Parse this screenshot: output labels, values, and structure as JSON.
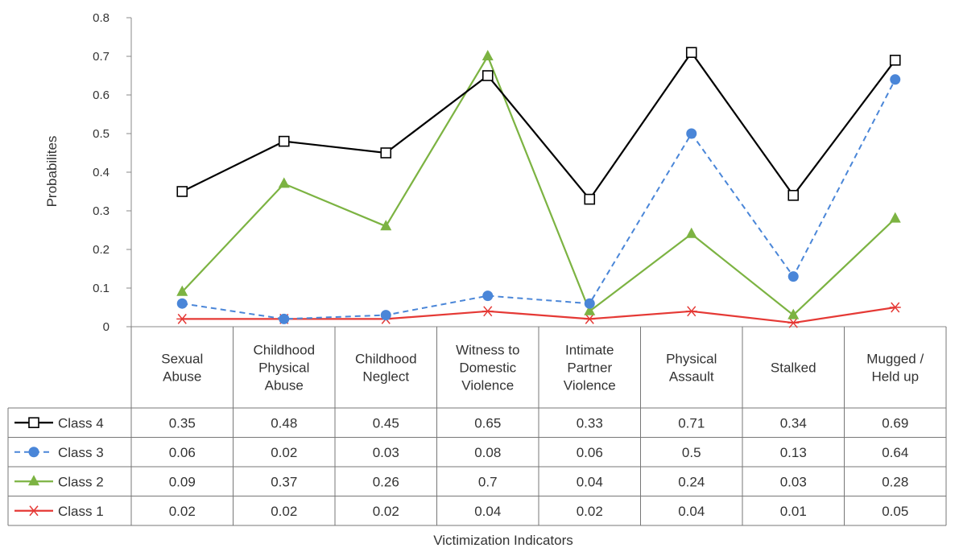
{
  "chart_data": {
    "type": "line",
    "xlabel": "Victimization Indicators",
    "ylabel": "Probabilites",
    "ylim": [
      0,
      0.8
    ],
    "yticks": [
      "0",
      "0.1",
      "0.2",
      "0.3",
      "0.4",
      "0.5",
      "0.6",
      "0.7",
      "0.8"
    ],
    "grid": false,
    "legend": "data-table",
    "categories": [
      [
        "Sexual",
        "Abuse"
      ],
      [
        "Childhood",
        "Physical",
        "Abuse"
      ],
      [
        "Childhood",
        "Neglect"
      ],
      [
        "Witness to",
        "Domestic",
        "Violence"
      ],
      [
        "Intimate",
        "Partner",
        "Violence"
      ],
      [
        "Physical",
        "Assault"
      ],
      [
        "Stalked"
      ],
      [
        "Mugged /",
        "Held up"
      ]
    ],
    "series": [
      {
        "name": "Class 4",
        "color": "#000000",
        "dash": "solid",
        "marker": "square-open",
        "values": [
          0.35,
          0.48,
          0.45,
          0.65,
          0.33,
          0.71,
          0.34,
          0.69
        ],
        "labels": [
          "0.35",
          "0.48",
          "0.45",
          "0.65",
          "0.33",
          "0.71",
          "0.34",
          "0.69"
        ]
      },
      {
        "name": "Class 3",
        "color": "#4a86d8",
        "dash": "dashed",
        "marker": "circle",
        "values": [
          0.06,
          0.02,
          0.03,
          0.08,
          0.06,
          0.5,
          0.13,
          0.64
        ],
        "labels": [
          "0.06",
          "0.02",
          "0.03",
          "0.08",
          "0.06",
          "0.5",
          "0.13",
          "0.64"
        ]
      },
      {
        "name": "Class 2",
        "color": "#7cb342",
        "dash": "solid",
        "marker": "triangle",
        "values": [
          0.09,
          0.37,
          0.26,
          0.7,
          0.04,
          0.24,
          0.03,
          0.28
        ],
        "labels": [
          "0.09",
          "0.37",
          "0.26",
          "0.7",
          "0.04",
          "0.24",
          "0.03",
          "0.28"
        ]
      },
      {
        "name": "Class 1",
        "color": "#e53935",
        "dash": "solid",
        "marker": "star",
        "values": [
          0.02,
          0.02,
          0.02,
          0.04,
          0.02,
          0.04,
          0.01,
          0.05
        ],
        "labels": [
          "0.02",
          "0.02",
          "0.02",
          "0.04",
          "0.02",
          "0.04",
          "0.01",
          "0.05"
        ]
      }
    ]
  }
}
